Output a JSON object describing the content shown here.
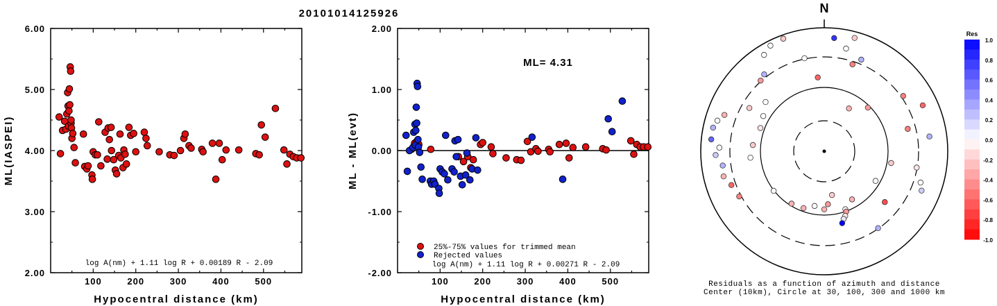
{
  "title": "20101014125926",
  "colors": {
    "accepted": "#dd1111",
    "rejected": "#1122cc",
    "axis": "#000000"
  },
  "chart_data": [
    {
      "type": "scatter",
      "xlabel": "Hypocentral distance (km)",
      "ylabel": "ML(IASPEI)",
      "xlim": [
        0,
        590
      ],
      "ylim": [
        2.0,
        6.0
      ],
      "xticks": [
        "100",
        "200",
        "300",
        "400",
        "500"
      ],
      "yticks": [
        "2.00",
        "3.00",
        "4.00",
        "5.00",
        "6.00"
      ],
      "formula": "log A(nm) + 1.11 log R + 0.00189 R - 2.09",
      "points": [
        [
          20,
          4.55
        ],
        [
          23,
          3.95
        ],
        [
          28,
          4.33
        ],
        [
          33,
          4.48
        ],
        [
          36,
          4.35
        ],
        [
          38,
          4.6
        ],
        [
          40,
          4.95
        ],
        [
          41,
          4.73
        ],
        [
          42,
          4.4
        ],
        [
          43,
          4.65
        ],
        [
          44,
          5.01
        ],
        [
          45,
          4.75
        ],
        [
          46,
          5.37
        ],
        [
          47,
          5.3
        ],
        [
          48,
          4.45
        ],
        [
          48,
          4.5
        ],
        [
          49,
          4.37
        ],
        [
          50,
          4.2
        ],
        [
          52,
          4.28
        ],
        [
          55,
          4.05
        ],
        [
          58,
          3.8
        ],
        [
          77,
          4.27
        ],
        [
          80,
          3.74
        ],
        [
          85,
          3.7
        ],
        [
          88,
          3.75
        ],
        [
          97,
          3.6
        ],
        [
          98,
          3.53
        ],
        [
          100,
          3.98
        ],
        [
          105,
          3.93
        ],
        [
          110,
          3.93
        ],
        [
          113,
          4.47
        ],
        [
          118,
          3.75
        ],
        [
          128,
          4.3
        ],
        [
          133,
          3.86
        ],
        [
          135,
          4.37
        ],
        [
          138,
          4.18
        ],
        [
          142,
          4.38
        ],
        [
          143,
          4.0
        ],
        [
          148,
          3.85
        ],
        [
          152,
          3.68
        ],
        [
          155,
          3.62
        ],
        [
          160,
          3.92
        ],
        [
          163,
          4.27
        ],
        [
          165,
          3.88
        ],
        [
          170,
          3.72
        ],
        [
          172,
          4.01
        ],
        [
          175,
          3.94
        ],
        [
          178,
          3.78
        ],
        [
          184,
          4.38
        ],
        [
          188,
          4.25
        ],
        [
          195,
          4.28
        ],
        [
          200,
          3.98
        ],
        [
          220,
          4.3
        ],
        [
          224,
          4.2
        ],
        [
          227,
          4.08
        ],
        [
          255,
          3.98
        ],
        [
          280,
          3.93
        ],
        [
          290,
          3.92
        ],
        [
          305,
          4.0
        ],
        [
          313,
          4.2
        ],
        [
          316,
          4.27
        ],
        [
          325,
          4.08
        ],
        [
          330,
          4.04
        ],
        [
          355,
          4.02
        ],
        [
          358,
          3.98
        ],
        [
          380,
          4.12
        ],
        [
          388,
          3.53
        ],
        [
          396,
          4.12
        ],
        [
          403,
          3.85
        ],
        [
          412,
          4.01
        ],
        [
          442,
          4.01
        ],
        [
          482,
          3.95
        ],
        [
          490,
          3.93
        ],
        [
          495,
          4.42
        ],
        [
          504,
          4.22
        ],
        [
          528,
          4.69
        ],
        [
          548,
          4.01
        ],
        [
          555,
          3.78
        ],
        [
          562,
          3.94
        ],
        [
          570,
          3.9
        ],
        [
          578,
          3.88
        ],
        [
          588,
          3.88
        ]
      ]
    },
    {
      "type": "scatter",
      "xlabel": "Hypocentral distance (km)",
      "ylabel": "ML - ML(evt)",
      "xlim": [
        0,
        590
      ],
      "ylim": [
        -2.0,
        2.0
      ],
      "xticks": [
        "100",
        "200",
        "300",
        "400",
        "500"
      ],
      "yticks": [
        "-2.00",
        "-1.00",
        "0.00",
        "1.00",
        "2.00"
      ],
      "annotation": "ML= 4.31",
      "formula": "log A(nm) + 1.11 log R + 0.00271 R - 2.09",
      "legend": [
        "25%-75% values for trimmed mean",
        "Rejected values"
      ],
      "accepted": [
        [
          33,
          0.02
        ],
        [
          40,
          0.12
        ],
        [
          45,
          0.15
        ],
        [
          50,
          0.1
        ],
        [
          78,
          0.02
        ],
        [
          143,
          -0.1
        ],
        [
          155,
          -0.18
        ],
        [
          165,
          -0.1
        ],
        [
          172,
          -0.28
        ],
        [
          178,
          -0.15
        ],
        [
          195,
          0.1
        ],
        [
          200,
          0.13
        ],
        [
          220,
          0.06
        ],
        [
          224,
          -0.05
        ],
        [
          255,
          -0.12
        ],
        [
          280,
          -0.15
        ],
        [
          290,
          -0.16
        ],
        [
          305,
          0.15
        ],
        [
          313,
          -0.02
        ],
        [
          325,
          0.03
        ],
        [
          330,
          -0.01
        ],
        [
          355,
          0.02
        ],
        [
          358,
          -0.02
        ],
        [
          380,
          0.1
        ],
        [
          396,
          0.12
        ],
        [
          403,
          -0.12
        ],
        [
          412,
          0.05
        ],
        [
          442,
          0.06
        ],
        [
          482,
          0.03
        ],
        [
          490,
          0.01
        ],
        [
          548,
          0.16
        ],
        [
          555,
          -0.06
        ],
        [
          562,
          0.1
        ],
        [
          570,
          0.06
        ],
        [
          578,
          0.06
        ],
        [
          588,
          0.06
        ]
      ],
      "rejected": [
        [
          20,
          0.25
        ],
        [
          23,
          -0.34
        ],
        [
          28,
          0.0
        ],
        [
          36,
          0.05
        ],
        [
          38,
          0.3
        ],
        [
          41,
          0.43
        ],
        [
          42,
          0.09
        ],
        [
          43,
          0.33
        ],
        [
          44,
          0.71
        ],
        [
          45,
          0.45
        ],
        [
          46,
          1.1
        ],
        [
          47,
          1.05
        ],
        [
          48,
          0.18
        ],
        [
          49,
          0.06
        ],
        [
          52,
          -0.03
        ],
        [
          55,
          -0.27
        ],
        [
          58,
          -0.47
        ],
        [
          77,
          -0.5
        ],
        [
          80,
          -0.55
        ],
        [
          85,
          -0.5
        ],
        [
          88,
          -0.55
        ],
        [
          97,
          -0.62
        ],
        [
          98,
          -0.7
        ],
        [
          100,
          -0.3
        ],
        [
          105,
          -0.35
        ],
        [
          110,
          -0.38
        ],
        [
          113,
          0.25
        ],
        [
          118,
          -0.48
        ],
        [
          128,
          -0.3
        ],
        [
          133,
          -0.35
        ],
        [
          135,
          0.16
        ],
        [
          138,
          -0.1
        ],
        [
          142,
          0.18
        ],
        [
          148,
          -0.42
        ],
        [
          152,
          -0.56
        ],
        [
          160,
          -0.4
        ],
        [
          163,
          -0.04
        ],
        [
          170,
          -0.48
        ],
        [
          175,
          -0.3
        ],
        [
          184,
          0.21
        ],
        [
          188,
          -0.32
        ],
        [
          316,
          0.22
        ],
        [
          388,
          -0.47
        ],
        [
          495,
          0.52
        ],
        [
          504,
          0.31
        ],
        [
          528,
          0.81
        ]
      ]
    },
    {
      "type": "polar-scatter",
      "north_label": "N",
      "caption": [
        "Residuals as a function of azimuth and distance",
        "Center (10km), Circle at 30, 100, 300 and 1000 km"
      ],
      "colorbar_title": "Res",
      "colorbar_labels": [
        "1.0",
        "0.8",
        "0.6",
        "0.4",
        "0.2",
        "0.0",
        "-0.2",
        "-0.4",
        "-0.6",
        "-0.8",
        "-1.0"
      ],
      "rings_km": [
        30,
        100,
        300,
        1000
      ],
      "stations": [
        [
          15,
          0.95,
          -0.2
        ],
        [
          22,
          0.8,
          0.3
        ],
        [
          55,
          0.78,
          -0.5
        ],
        [
          65,
          0.88,
          -0.6
        ],
        [
          75,
          0.7,
          -0.5
        ],
        [
          82,
          0.86,
          0.3
        ],
        [
          100,
          0.76,
          -0.1
        ],
        [
          108,
          0.82,
          0.0
        ],
        [
          112,
          0.85,
          0.2
        ],
        [
          130,
          0.64,
          -0.7
        ],
        [
          145,
          0.76,
          0.3
        ],
        [
          160,
          0.5,
          0.0
        ],
        [
          160,
          0.52,
          -0.4
        ],
        [
          162,
          0.55,
          -0.1
        ],
        [
          164,
          0.57,
          0.1
        ],
        [
          166,
          0.6,
          1.0
        ],
        [
          150,
          0.45,
          -0.3
        ],
        [
          200,
          0.49,
          -0.3
        ],
        [
          212,
          0.5,
          -0.3
        ],
        [
          232,
          0.52,
          0.0
        ],
        [
          242,
          0.78,
          -0.5
        ],
        [
          250,
          0.8,
          -0.6
        ],
        [
          256,
          0.84,
          -0.3
        ],
        [
          262,
          0.83,
          0.3
        ],
        [
          268,
          0.88,
          0.2
        ],
        [
          272,
          0.85,
          0.0
        ],
        [
          276,
          0.92,
          0.6
        ],
        [
          282,
          0.92,
          0.3
        ],
        [
          286,
          0.9,
          0.0
        ],
        [
          290,
          0.86,
          -0.3
        ],
        [
          300,
          0.7,
          -0.2
        ],
        [
          310,
          0.62,
          0.0
        ],
        [
          318,
          0.77,
          -0.4
        ],
        [
          322,
          0.79,
          0.3
        ],
        [
          328,
          0.92,
          0.0
        ],
        [
          333,
          0.96,
          0.0
        ],
        [
          340,
          0.97,
          -0.2
        ],
        [
          348,
          0.77,
          0.0
        ],
        [
          355,
          0.6,
          -0.6
        ],
        [
          5,
          0.92,
          0.8
        ],
        [
          12,
          0.85,
          0.0
        ],
        [
          18,
          0.74,
          -0.5
        ],
        [
          300,
          0.57,
          0.0
        ],
        [
          290,
          0.55,
          -0.1
        ],
        [
          275,
          0.58,
          -0.2
        ],
        [
          265,
          0.6,
          0.0
        ],
        [
          30,
          0.4,
          -0.3
        ],
        [
          45,
          0.5,
          -0.4
        ],
        [
          100,
          0.55,
          -0.2
        ],
        [
          120,
          0.48,
          0.0
        ],
        [
          190,
          0.45,
          0.0
        ],
        [
          180,
          0.47,
          -0.3
        ],
        [
          176,
          0.43,
          -0.4
        ],
        [
          170,
          0.36,
          -0.2
        ]
      ]
    }
  ]
}
